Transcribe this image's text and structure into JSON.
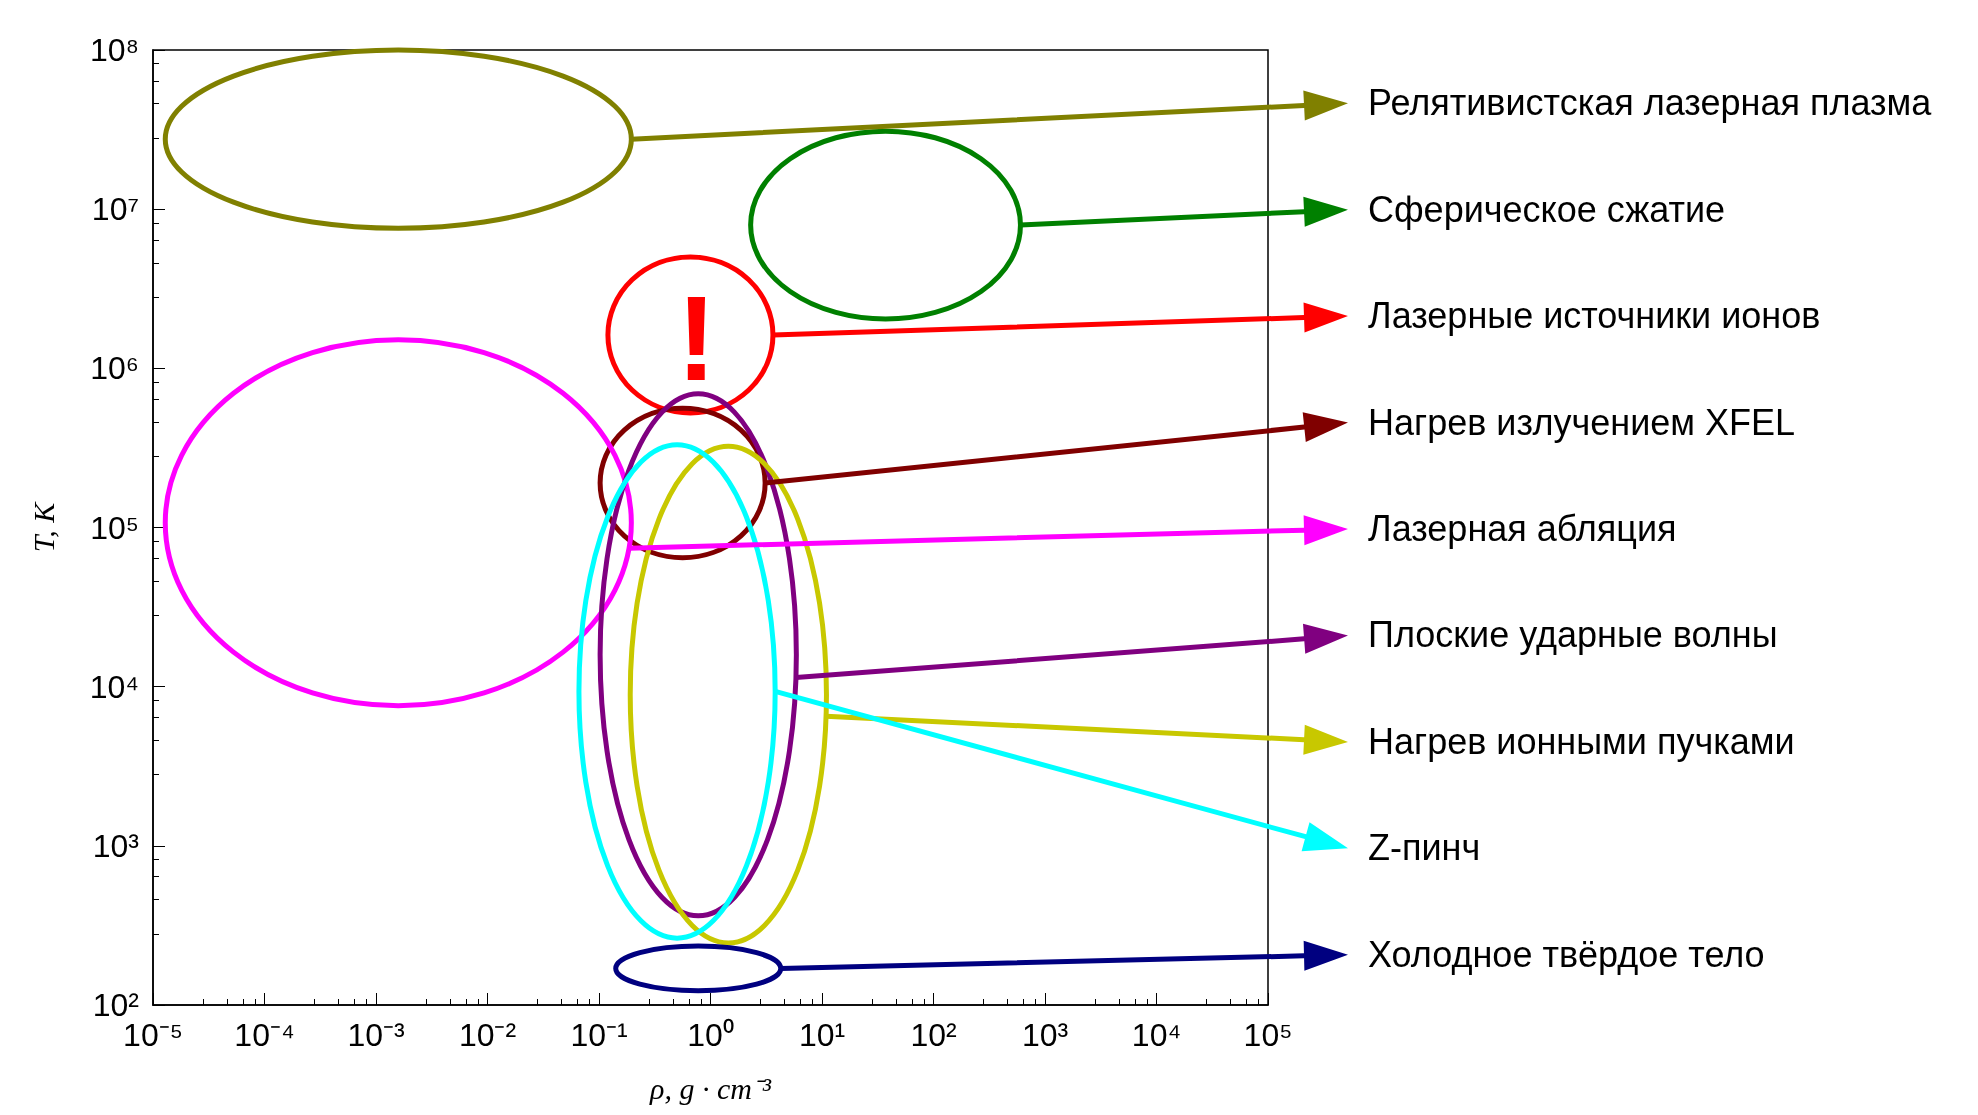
{
  "chart_data": {
    "type": "line",
    "xlabel": "ρ, g · cm⁻³",
    "ylabel": "T, K",
    "log": "xy",
    "grid": false,
    "xlim": [
      1e-05,
      100000.0
    ],
    "ylim": [
      100.0,
      100000000.0
    ],
    "xticks": [
      {
        "value": 1e-05,
        "label": "10⁻⁵"
      },
      {
        "value": 0.0001,
        "label": "10⁻⁴"
      },
      {
        "value": 0.001,
        "label": "10⁻³"
      },
      {
        "value": 0.01,
        "label": "10⁻²"
      },
      {
        "value": 0.1,
        "label": "10⁻¹"
      },
      {
        "value": 1,
        "label": "10⁰"
      },
      {
        "value": 10,
        "label": "10¹"
      },
      {
        "value": 100,
        "label": "10²"
      },
      {
        "value": 1000,
        "label": "10³"
      },
      {
        "value": 10000,
        "label": "10⁴"
      },
      {
        "value": 100000,
        "label": "10⁵"
      }
    ],
    "yticks": [
      {
        "value": 100,
        "label": "10²"
      },
      {
        "value": 1000,
        "label": "10³"
      },
      {
        "value": 10000,
        "label": "10⁴"
      },
      {
        "value": 100000,
        "label": "10⁵"
      },
      {
        "value": 1000000,
        "label": "10⁶"
      },
      {
        "value": 10000000,
        "label": "10⁷"
      },
      {
        "value": 100000000,
        "label": "10⁸"
      }
    ],
    "annotations": [
      "Релятивистская лазерная плазма",
      "Сферическое сжатие",
      "Лазерные источники ионов",
      "Нагрев излучением XFEL",
      "Лазерная абляция",
      "Плоские ударные волны",
      "Нагрев ионными пучками",
      "Z-пинч",
      "Холодное твёрдое тело",
      "!"
    ]
  }
}
